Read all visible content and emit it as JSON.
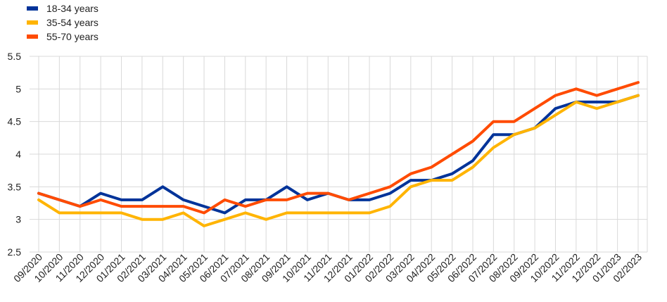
{
  "chart_data": {
    "type": "line",
    "title": "",
    "xlabel": "",
    "ylabel": "",
    "ylim": [
      2.5,
      5.5
    ],
    "yticks": [
      "2.5",
      "3",
      "3.5",
      "4",
      "4.5",
      "5",
      "5.5"
    ],
    "grid": true,
    "legend_position": "top-left",
    "categories": [
      "09/2020",
      "10/2020",
      "11/2020",
      "12/2020",
      "01/2021",
      "02/2021",
      "03/2021",
      "04/2021",
      "05/2021",
      "06/2021",
      "07/2021",
      "08/2021",
      "09/2021",
      "10/2021",
      "11/2021",
      "12/2021",
      "01/2022",
      "02/2022",
      "03/2022",
      "04/2022",
      "05/2022",
      "06/2022",
      "07/2022",
      "08/2022",
      "09/2022",
      "10/2022",
      "11/2022",
      "12/2022",
      "01/2023",
      "02/2023"
    ],
    "series": [
      {
        "name": "18-34 years",
        "color": "#003399",
        "values": [
          3.4,
          3.3,
          3.2,
          3.4,
          3.3,
          3.3,
          3.5,
          3.3,
          3.2,
          3.1,
          3.3,
          3.3,
          3.5,
          3.3,
          3.4,
          3.3,
          3.3,
          3.4,
          3.6,
          3.6,
          3.7,
          3.9,
          4.3,
          4.3,
          4.4,
          4.7,
          4.8,
          4.8,
          4.8,
          4.9
        ]
      },
      {
        "name": "35-54 years",
        "color": "#FFB400",
        "values": [
          3.3,
          3.1,
          3.1,
          3.1,
          3.1,
          3.0,
          3.0,
          3.1,
          2.9,
          3.0,
          3.1,
          3.0,
          3.1,
          3.1,
          3.1,
          3.1,
          3.1,
          3.2,
          3.5,
          3.6,
          3.6,
          3.8,
          4.1,
          4.3,
          4.4,
          4.6,
          4.8,
          4.7,
          4.8,
          4.9
        ]
      },
      {
        "name": "55-70 years",
        "color": "#FF4B00",
        "values": [
          3.4,
          3.3,
          3.2,
          3.3,
          3.2,
          3.2,
          3.2,
          3.2,
          3.1,
          3.3,
          3.2,
          3.3,
          3.3,
          3.4,
          3.4,
          3.3,
          3.4,
          3.5,
          3.7,
          3.8,
          4.0,
          4.2,
          4.5,
          4.5,
          4.7,
          4.9,
          5.0,
          4.9,
          5.0,
          5.1
        ]
      }
    ]
  }
}
